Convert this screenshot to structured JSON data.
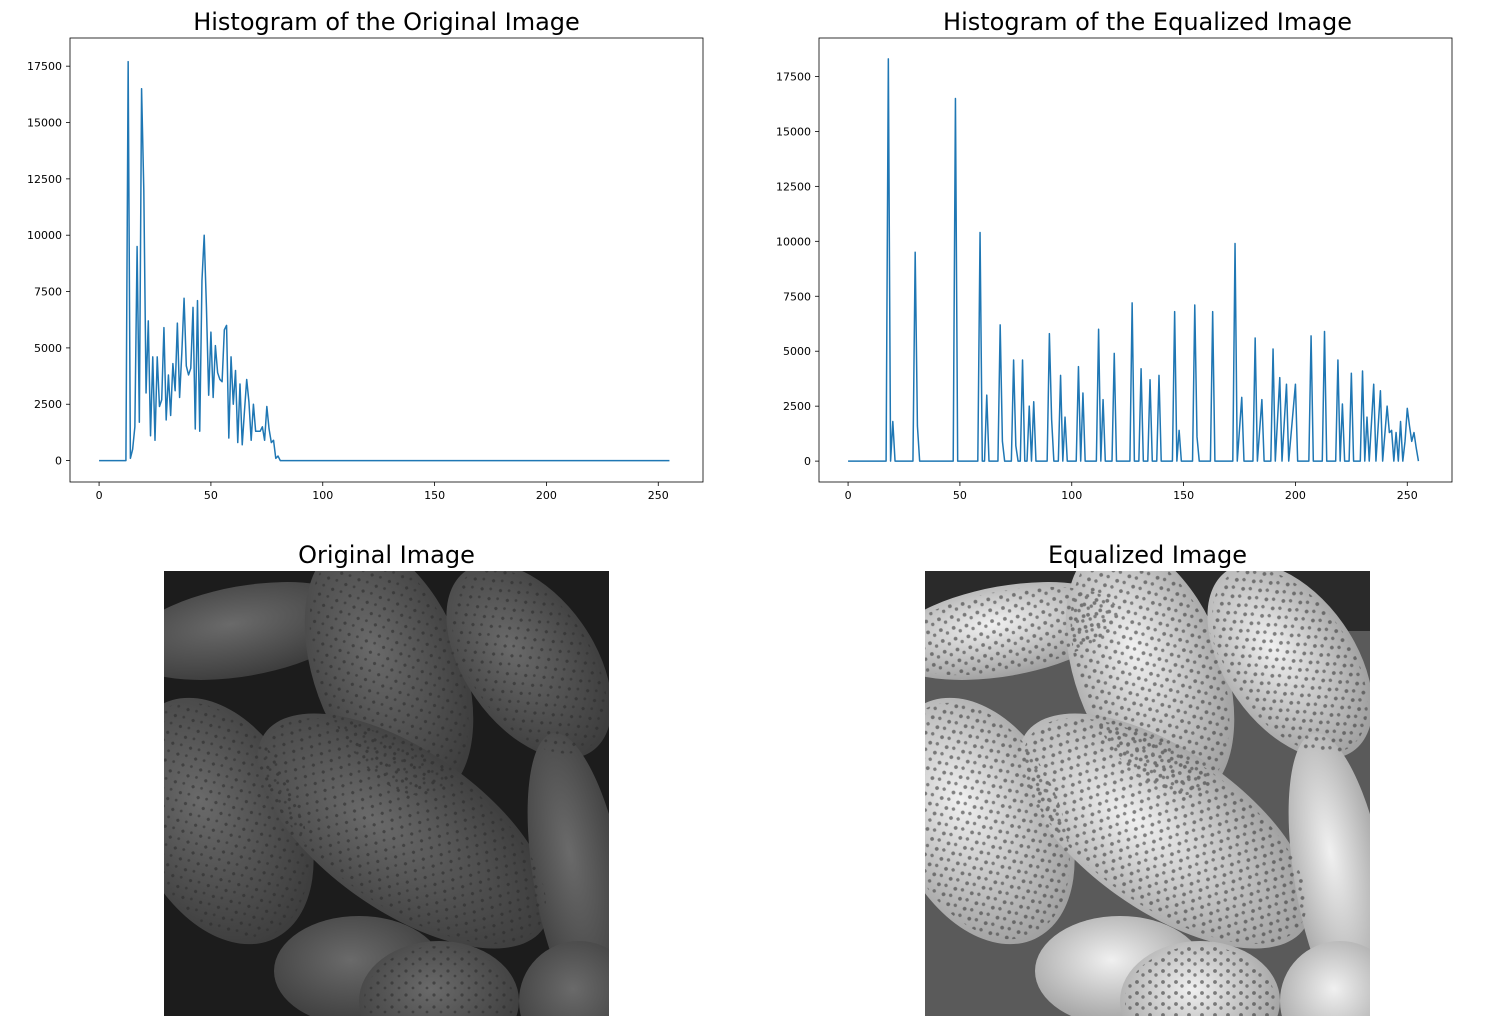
{
  "charts_titles": {
    "orig_hist": "Histogram of the Original Image",
    "eq_hist": "Histogram of the Equalized Image",
    "orig_img": "Original Image",
    "eq_img": "Equalized Image"
  },
  "colors": {
    "line": "#1f77b4",
    "axis": "#000000"
  },
  "chart_data": [
    {
      "type": "line",
      "title": "Histogram of the Original Image",
      "xlabel": "",
      "ylabel": "",
      "xlim": [
        -13,
        270
      ],
      "ylim": [
        -950,
        18750
      ],
      "xticks": [
        0,
        50,
        100,
        150,
        200,
        250
      ],
      "yticks": [
        0,
        2500,
        5000,
        7500,
        10000,
        12500,
        15000,
        17500
      ],
      "grid": false,
      "series": [
        {
          "points": [
            [
              0,
              0
            ],
            [
              12,
              0
            ],
            [
              13,
              17700
            ],
            [
              14,
              100
            ],
            [
              15,
              500
            ],
            [
              16,
              1500
            ],
            [
              17,
              9500
            ],
            [
              18,
              1700
            ],
            [
              19,
              16500
            ],
            [
              20,
              12000
            ],
            [
              21,
              3000
            ],
            [
              22,
              6200
            ],
            [
              23,
              1100
            ],
            [
              24,
              4600
            ],
            [
              25,
              900
            ],
            [
              26,
              4600
            ],
            [
              27,
              2400
            ],
            [
              28,
              2700
            ],
            [
              29,
              5900
            ],
            [
              30,
              1800
            ],
            [
              31,
              3800
            ],
            [
              32,
              2000
            ],
            [
              33,
              4300
            ],
            [
              34,
              3100
            ],
            [
              35,
              6100
            ],
            [
              36,
              2800
            ],
            [
              37,
              4800
            ],
            [
              38,
              7200
            ],
            [
              39,
              4200
            ],
            [
              40,
              3800
            ],
            [
              41,
              4100
            ],
            [
              42,
              6800
            ],
            [
              43,
              1400
            ],
            [
              44,
              7100
            ],
            [
              45,
              1300
            ],
            [
              46,
              8000
            ],
            [
              47,
              10000
            ],
            [
              48,
              6800
            ],
            [
              49,
              2900
            ],
            [
              50,
              5700
            ],
            [
              51,
              2800
            ],
            [
              52,
              5100
            ],
            [
              53,
              3900
            ],
            [
              54,
              3600
            ],
            [
              55,
              3500
            ],
            [
              56,
              5800
            ],
            [
              57,
              6000
            ],
            [
              58,
              1000
            ],
            [
              59,
              4600
            ],
            [
              60,
              2500
            ],
            [
              61,
              4000
            ],
            [
              62,
              800
            ],
            [
              63,
              3400
            ],
            [
              64,
              700
            ],
            [
              65,
              2200
            ],
            [
              66,
              3600
            ],
            [
              67,
              2600
            ],
            [
              68,
              900
            ],
            [
              69,
              2500
            ],
            [
              70,
              1300
            ],
            [
              71,
              1300
            ],
            [
              72,
              1300
            ],
            [
              73,
              1500
            ],
            [
              74,
              900
            ],
            [
              75,
              2400
            ],
            [
              76,
              1400
            ],
            [
              77,
              800
            ],
            [
              78,
              900
            ],
            [
              79,
              100
            ],
            [
              80,
              200
            ],
            [
              81,
              0
            ],
            [
              120,
              0
            ],
            [
              255,
              0
            ]
          ]
        }
      ]
    },
    {
      "type": "line",
      "title": "Histogram of the Equalized Image",
      "xlabel": "",
      "ylabel": "",
      "xlim": [
        -13,
        270
      ],
      "ylim": [
        -950,
        19250
      ],
      "xticks": [
        0,
        50,
        100,
        150,
        200,
        250
      ],
      "yticks": [
        0,
        2500,
        5000,
        7500,
        10000,
        12500,
        15000,
        17500
      ],
      "grid": false,
      "series": [
        {
          "points": [
            [
              0,
              0
            ],
            [
              17,
              0
            ],
            [
              18,
              18300
            ],
            [
              19,
              0
            ],
            [
              20,
              1800
            ],
            [
              21,
              0
            ],
            [
              29,
              0
            ],
            [
              30,
              9500
            ],
            [
              31,
              1600
            ],
            [
              32,
              0
            ],
            [
              47,
              0
            ],
            [
              48,
              16500
            ],
            [
              49,
              0
            ],
            [
              58,
              0
            ],
            [
              59,
              10400
            ],
            [
              60,
              0
            ],
            [
              61,
              0
            ],
            [
              62,
              3000
            ],
            [
              63,
              0
            ],
            [
              67,
              0
            ],
            [
              68,
              6200
            ],
            [
              69,
              900
            ],
            [
              70,
              0
            ],
            [
              73,
              0
            ],
            [
              74,
              4600
            ],
            [
              75,
              700
            ],
            [
              76,
              0
            ],
            [
              77,
              0
            ],
            [
              78,
              4600
            ],
            [
              79,
              0
            ],
            [
              80,
              0
            ],
            [
              81,
              2500
            ],
            [
              82,
              0
            ],
            [
              83,
              2700
            ],
            [
              84,
              0
            ],
            [
              89,
              0
            ],
            [
              90,
              5800
            ],
            [
              91,
              1900
            ],
            [
              92,
              0
            ],
            [
              94,
              0
            ],
            [
              95,
              3900
            ],
            [
              96,
              0
            ],
            [
              97,
              2000
            ],
            [
              98,
              0
            ],
            [
              102,
              0
            ],
            [
              103,
              4300
            ],
            [
              104,
              0
            ],
            [
              105,
              3100
            ],
            [
              106,
              0
            ],
            [
              111,
              0
            ],
            [
              112,
              6000
            ],
            [
              113,
              0
            ],
            [
              114,
              2800
            ],
            [
              115,
              0
            ],
            [
              118,
              0
            ],
            [
              119,
              4900
            ],
            [
              120,
              0
            ],
            [
              126,
              0
            ],
            [
              127,
              7200
            ],
            [
              128,
              0
            ],
            [
              130,
              0
            ],
            [
              131,
              4200
            ],
            [
              132,
              0
            ],
            [
              134,
              0
            ],
            [
              135,
              3700
            ],
            [
              136,
              0
            ],
            [
              138,
              0
            ],
            [
              139,
              3900
            ],
            [
              140,
              0
            ],
            [
              145,
              0
            ],
            [
              146,
              6800
            ],
            [
              147,
              0
            ],
            [
              148,
              1400
            ],
            [
              149,
              0
            ],
            [
              154,
              0
            ],
            [
              155,
              7100
            ],
            [
              156,
              1100
            ],
            [
              157,
              0
            ],
            [
              162,
              0
            ],
            [
              163,
              6800
            ],
            [
              164,
              0
            ],
            [
              172,
              0
            ],
            [
              173,
              9900
            ],
            [
              174,
              0
            ],
            [
              176,
              2900
            ],
            [
              177,
              0
            ],
            [
              181,
              0
            ],
            [
              182,
              5600
            ],
            [
              183,
              0
            ],
            [
              185,
              2800
            ],
            [
              186,
              0
            ],
            [
              189,
              0
            ],
            [
              190,
              5100
            ],
            [
              191,
              0
            ],
            [
              193,
              3800
            ],
            [
              194,
              0
            ],
            [
              196,
              3500
            ],
            [
              197,
              0
            ],
            [
              200,
              3500
            ],
            [
              201,
              0
            ],
            [
              206,
              0
            ],
            [
              207,
              5700
            ],
            [
              208,
              0
            ],
            [
              212,
              0
            ],
            [
              213,
              5900
            ],
            [
              214,
              0
            ],
            [
              218,
              0
            ],
            [
              219,
              4600
            ],
            [
              220,
              0
            ],
            [
              221,
              2600
            ],
            [
              222,
              0
            ],
            [
              224,
              0
            ],
            [
              225,
              4000
            ],
            [
              226,
              0
            ],
            [
              229,
              0
            ],
            [
              230,
              4100
            ],
            [
              231,
              0
            ],
            [
              232,
              2000
            ],
            [
              233,
              0
            ],
            [
              235,
              3500
            ],
            [
              236,
              0
            ],
            [
              238,
              3200
            ],
            [
              239,
              0
            ],
            [
              241,
              2500
            ],
            [
              242,
              1300
            ],
            [
              243,
              1400
            ],
            [
              244,
              0
            ],
            [
              245,
              1300
            ],
            [
              246,
              0
            ],
            [
              247,
              1800
            ],
            [
              248,
              0
            ],
            [
              249,
              900
            ],
            [
              250,
              2400
            ],
            [
              251,
              1600
            ],
            [
              252,
              900
            ],
            [
              253,
              1300
            ],
            [
              254,
              600
            ],
            [
              255,
              0
            ]
          ]
        }
      ]
    }
  ]
}
